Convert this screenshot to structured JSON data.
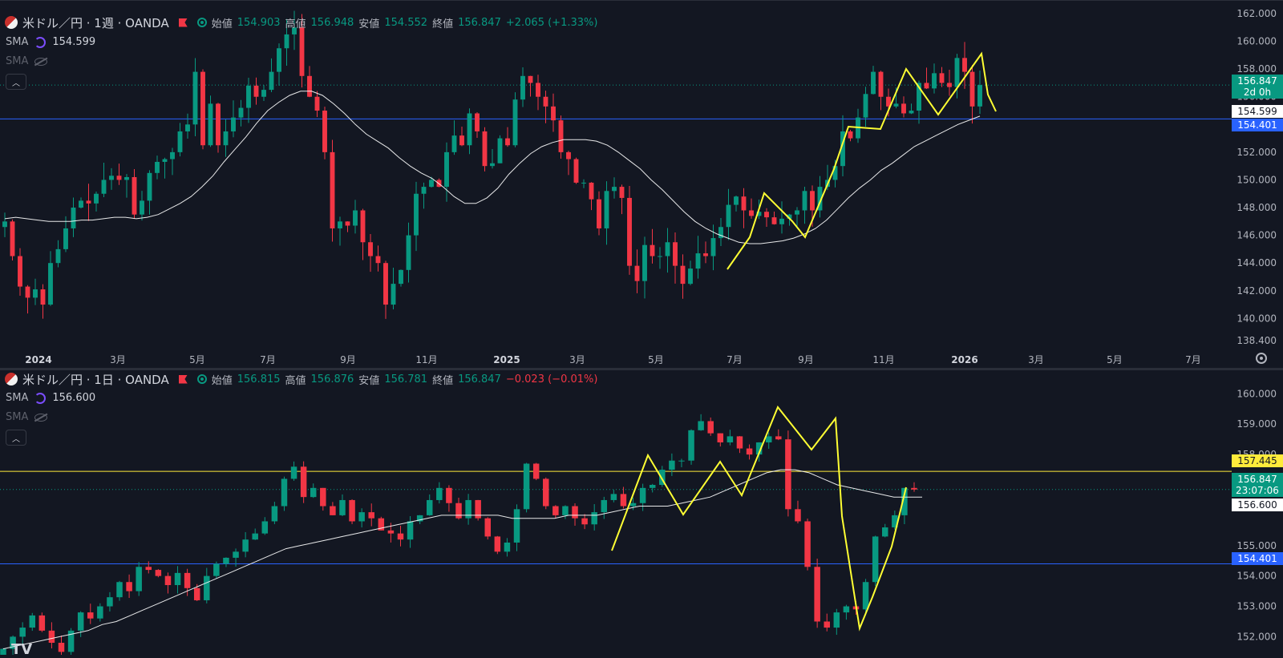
{
  "colors": {
    "background": "#131722",
    "up": "#089981",
    "down": "#f23645",
    "sma_line": "#ffffff",
    "support_line": "#2962ff",
    "resistance_line": "#ffeb3b",
    "annotation": "#ffff33",
    "price_line": "#089981"
  },
  "icons": [
    "flag-icon",
    "collapse-icon",
    "sync-icon",
    "eye-off-icon",
    "gear-icon",
    "tradingview-logo"
  ],
  "panes": [
    {
      "header": {
        "title": "米ドル／円 · 1週 · OANDA",
        "open_label": "始値",
        "open_value": "154.903",
        "high_label": "高値",
        "high_value": "156.948",
        "low_label": "安値",
        "low_value": "154.552",
        "close_label": "終値",
        "close_value": "156.847",
        "change": "+2.065 (+1.33%)"
      },
      "indicators": [
        {
          "name": "SMA",
          "value": "154.599"
        },
        {
          "name": "SMA",
          "value": ""
        }
      ],
      "price_tags": [
        {
          "text": "156.847",
          "sub": "2d 0h",
          "kind": "last"
        },
        {
          "text": "154.599",
          "kind": "sma"
        },
        {
          "text": "154.401",
          "kind": "support"
        }
      ],
      "time_labels": [
        "2024",
        "3月",
        "5月",
        "7月",
        "9月",
        "11月",
        "2025",
        "3月",
        "5月",
        "7月",
        "9月",
        "11月",
        "2026",
        "3月",
        "5月",
        "7月"
      ]
    },
    {
      "header": {
        "title": "米ドル／円 · 1日 · OANDA",
        "open_label": "始値",
        "open_value": "156.815",
        "high_label": "高値",
        "high_value": "156.876",
        "low_label": "安値",
        "low_value": "156.781",
        "close_label": "終値",
        "close_value": "156.847",
        "change": "−0.023 (−0.01%)"
      },
      "indicators": [
        {
          "name": "SMA",
          "value": "156.600"
        },
        {
          "name": "SMA",
          "value": ""
        }
      ],
      "price_tags": [
        {
          "text": "157.445",
          "kind": "resistance"
        },
        {
          "text": "156.847",
          "sub": "23:07:06",
          "kind": "last"
        },
        {
          "text": "156.600",
          "kind": "sma"
        },
        {
          "text": "154.401",
          "kind": "support"
        }
      ]
    }
  ],
  "chart_data": [
    {
      "type": "candlestick",
      "title": "米ドル／円 · 1週 · OANDA",
      "ylim": [
        138.4,
        162.0
      ],
      "yticks": [
        "162.000",
        "160.000",
        "158.000",
        "156.000",
        "154.000",
        "152.000",
        "150.000",
        "148.000",
        "146.000",
        "144.000",
        "142.000",
        "140.000",
        "138.400"
      ],
      "x_tick_labels": [
        "2024",
        "3月",
        "5月",
        "7月",
        "9月",
        "11月",
        "2025",
        "3月",
        "5月",
        "7月",
        "9月",
        "11月",
        "2026",
        "3月",
        "5月",
        "7月"
      ],
      "horizontal_lines": [
        154.401
      ],
      "last_price": 156.847,
      "close_series": [
        147.0,
        144.5,
        142.3,
        141.5,
        142.1,
        141.0,
        144.0,
        145.0,
        146.5,
        148.0,
        148.5,
        148.3,
        149.0,
        150.0,
        150.3,
        150.0,
        150.2,
        147.5,
        148.5,
        150.5,
        151.3,
        151.5,
        152.0,
        153.5,
        154.0,
        157.8,
        152.5,
        155.5,
        152.5,
        153.5,
        154.5,
        155.2,
        156.8,
        156.0,
        156.5,
        157.8,
        159.5,
        160.5,
        161.0,
        157.5,
        156.0,
        155.0,
        152.0,
        146.5,
        147.0,
        146.7,
        147.8,
        145.5,
        144.5,
        144.0,
        141.0,
        142.5,
        143.5,
        146.0,
        149.0,
        149.5,
        150.0,
        149.5,
        152.0,
        153.2,
        152.5,
        154.8,
        153.5,
        151.0,
        151.2,
        153.0,
        152.5,
        155.8,
        157.5,
        157.0,
        156.0,
        155.3,
        154.3,
        152.0,
        151.5,
        149.8,
        149.8,
        148.6,
        146.5,
        149.2,
        149.5,
        148.7,
        143.8,
        142.7,
        145.3,
        144.5,
        144.5,
        145.5,
        143.8,
        142.5,
        143.6,
        144.7,
        144.5,
        145.8,
        146.6,
        148.2,
        148.8,
        147.8,
        147.4,
        147.7,
        147.3,
        146.8,
        147.2,
        147.5,
        147.8,
        149.2,
        147.8,
        149.5,
        150.0,
        151.0,
        153.5,
        153.0,
        154.5,
        156.2,
        157.8,
        156.0,
        155.3,
        155.5,
        154.8,
        155.0,
        157.0,
        156.6,
        157.7,
        157.0,
        156.7,
        158.8,
        157.8,
        155.3,
        156.847
      ],
      "sma_series": [
        147.2,
        147.3,
        147.2,
        147.1,
        147.0,
        147.0,
        147.0,
        147.1,
        147.1,
        147.2,
        147.3,
        147.3,
        147.2,
        147.3,
        147.5,
        147.9,
        148.3,
        148.8,
        149.5,
        150.3,
        151.3,
        152.2,
        153.1,
        154.1,
        155.0,
        155.6,
        156.1,
        156.4,
        156.4,
        156.1,
        155.5,
        154.8,
        154.0,
        153.3,
        152.8,
        152.3,
        151.6,
        151.0,
        150.5,
        150.1,
        149.5,
        148.8,
        148.3,
        148.3,
        148.7,
        149.4,
        150.4,
        151.2,
        151.9,
        152.4,
        152.7,
        152.9,
        152.9,
        152.9,
        152.8,
        152.5,
        152.0,
        151.4,
        150.8,
        150.0,
        149.3,
        148.5,
        147.7,
        147.0,
        146.5,
        146.1,
        145.8,
        145.5,
        145.4,
        145.4,
        145.5,
        145.6,
        145.8,
        146.1,
        146.5,
        147.1,
        147.9,
        148.7,
        149.4,
        150.0,
        150.7,
        151.2,
        151.8,
        152.4,
        152.8,
        153.2,
        153.6,
        154.0,
        154.3,
        154.6
      ]
    },
    {
      "type": "candlestick",
      "title": "米ドル／円 · 1日 · OANDA",
      "ylim": [
        151.8,
        160.3
      ],
      "yticks": [
        "160.000",
        "159.000",
        "158.000",
        "155.000",
        "154.000",
        "153.000",
        "152.000"
      ],
      "horizontal_lines": [
        157.445,
        154.401
      ],
      "last_price": 156.847,
      "close_series": [
        151.6,
        152.0,
        152.3,
        152.7,
        152.2,
        151.8,
        151.5,
        152.2,
        152.8,
        152.6,
        153.0,
        153.3,
        153.8,
        153.5,
        154.3,
        154.2,
        154.0,
        153.7,
        154.1,
        153.6,
        153.2,
        154.0,
        154.4,
        154.6,
        154.8,
        155.2,
        155.4,
        155.8,
        156.3,
        157.2,
        157.6,
        156.6,
        156.9,
        156.3,
        156.0,
        156.5,
        155.8,
        156.1,
        155.9,
        155.5,
        155.4,
        155.2,
        155.8,
        156.0,
        156.5,
        156.9,
        156.4,
        155.9,
        156.5,
        155.9,
        155.3,
        154.8,
        155.1,
        156.2,
        157.7,
        157.2,
        156.3,
        156.0,
        156.3,
        155.9,
        155.7,
        156.1,
        156.5,
        156.7,
        156.3,
        156.4,
        156.9,
        157.0,
        157.5,
        157.8,
        157.8,
        158.8,
        159.1,
        158.7,
        158.4,
        158.6,
        158.2,
        158.0,
        158.4,
        158.6,
        158.5,
        156.2,
        155.8,
        154.3,
        152.5,
        152.3,
        152.8,
        153.0,
        152.9,
        153.8,
        155.3,
        155.6,
        156.0,
        156.9,
        156.847
      ],
      "sma_series": [
        151.6,
        151.7,
        151.8,
        151.9,
        152.0,
        152.1,
        152.2,
        152.4,
        152.5,
        152.7,
        152.9,
        153.1,
        153.3,
        153.5,
        153.7,
        153.9,
        154.1,
        154.3,
        154.5,
        154.7,
        154.9,
        155.0,
        155.1,
        155.2,
        155.3,
        155.4,
        155.5,
        155.6,
        155.7,
        155.8,
        155.9,
        156.0,
        156.0,
        156.0,
        156.0,
        156.0,
        155.9,
        155.9,
        155.9,
        155.9,
        156.0,
        156.0,
        156.0,
        156.1,
        156.2,
        156.3,
        156.3,
        156.3,
        156.4,
        156.5,
        156.6,
        156.8,
        157.0,
        157.2,
        157.4,
        157.5,
        157.5,
        157.4,
        157.2,
        157.0,
        156.9,
        156.8,
        156.7,
        156.6,
        156.6,
        156.6
      ]
    }
  ]
}
